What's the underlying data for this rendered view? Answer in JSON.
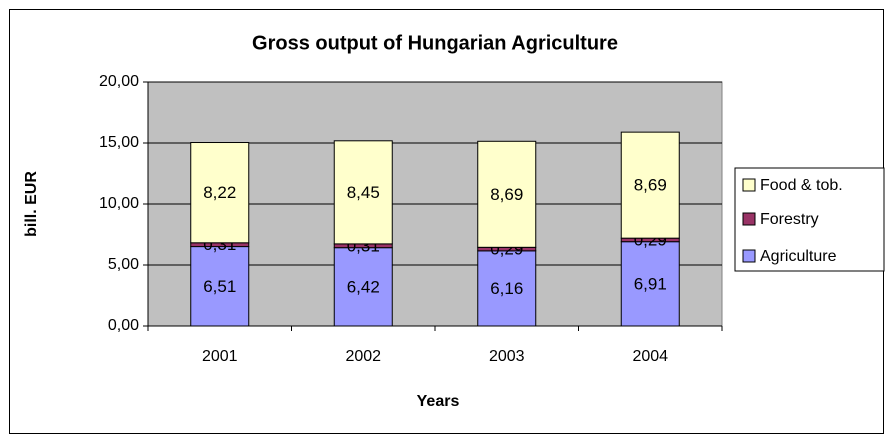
{
  "chart_data": {
    "type": "stacked_bar",
    "title": "Gross output of Hungarian Agriculture",
    "x_label": "Years",
    "y_label": "bill. EUR",
    "categories": [
      "2001",
      "2002",
      "2003",
      "2004"
    ],
    "series": [
      {
        "name": "Agriculture",
        "color": "#9999ff",
        "values": [
          6.51,
          6.42,
          6.16,
          6.91
        ],
        "value_labels": [
          "6,51",
          "6,42",
          "6,16",
          "6,91"
        ]
      },
      {
        "name": "Forestry",
        "color": "#993366",
        "values": [
          0.31,
          0.31,
          0.29,
          0.29
        ],
        "value_labels": [
          "0,31",
          "0,31",
          "0,29",
          "0,29"
        ]
      },
      {
        "name": "Food & tob.",
        "color": "#ffffcc",
        "values": [
          8.22,
          8.45,
          8.69,
          8.69
        ],
        "value_labels": [
          "8,22",
          "8,45",
          "8,69",
          "8,69"
        ]
      }
    ],
    "ylim": [
      0,
      20
    ],
    "yticks": [
      {
        "value": 0,
        "label": "0,00"
      },
      {
        "value": 5,
        "label": "5,00"
      },
      {
        "value": 10,
        "label": "10,00"
      },
      {
        "value": 15,
        "label": "15,00"
      },
      {
        "value": 20,
        "label": "20,00"
      }
    ],
    "legend": "right",
    "plot_background": "#c0c0c0"
  }
}
